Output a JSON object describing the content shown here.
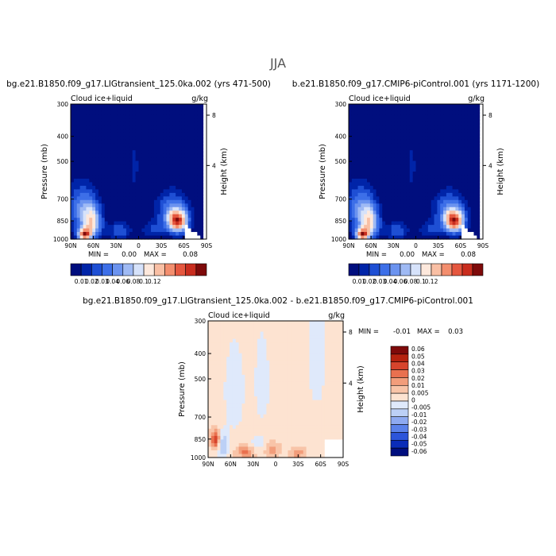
{
  "page_title": "JJA",
  "colors": {
    "ice_scale": [
      "#000e7e",
      "#0024a8",
      "#1e4fd4",
      "#3d6fe8",
      "#6b93ef",
      "#9fbaf4",
      "#d6e2fa",
      "#fde8dc",
      "#f9bfa4",
      "#f38e6e",
      "#e5573f",
      "#c92d1e",
      "#7e0a0a"
    ],
    "diff_scale": [
      "#000e7e",
      "#0a2cb8",
      "#2c55da",
      "#5b82ea",
      "#8eaaf1",
      "#bcd0f6",
      "#dfe9fb",
      "#fde3d1",
      "#f8c4a8",
      "#f29d7b",
      "#e9704f",
      "#d7442c",
      "#b5220f",
      "#7e0a0a"
    ]
  },
  "chart_data": [
    {
      "type": "heatmap",
      "title": "bg.e21.B1850.f09_g17.LIGtransient_125.0ka.002 (yrs 471-500)",
      "variable": "Cloud ice+liquid",
      "units": "g/kg",
      "ylabel": "Pressure (mb)",
      "y2label": "Height (km)",
      "x_ticks": [
        "90N",
        "60N",
        "30N",
        "0",
        "30S",
        "60S",
        "90S"
      ],
      "x_range": [
        90,
        -90
      ],
      "y_ticks": [
        300,
        400,
        500,
        700,
        850,
        1000
      ],
      "y_range": [
        300,
        1000
      ],
      "y2_ticks": [
        8,
        4
      ],
      "min_label": "MIN =",
      "min": "0.00",
      "max_label": "MAX =",
      "max": "0.08",
      "colorbar": {
        "orientation": "horizontal",
        "labels": [
          "0.01",
          "0.02",
          "0.03",
          "0.04",
          "0.06",
          "0.08",
          "0.1",
          "0.12"
        ]
      }
    },
    {
      "type": "heatmap",
      "title": "b.e21.B1850.f09_g17.CMIP6-piControl.001 (yrs 1171-1200)",
      "variable": "Cloud ice+liquid",
      "units": "g/kg",
      "ylabel": "Pressure (mb)",
      "y2label": "Height (km)",
      "x_ticks": [
        "90N",
        "60N",
        "30N",
        "0",
        "30S",
        "60S",
        "90S"
      ],
      "x_range": [
        90,
        -90
      ],
      "y_ticks": [
        300,
        400,
        500,
        700,
        850,
        1000
      ],
      "y_range": [
        300,
        1000
      ],
      "y2_ticks": [
        8,
        4
      ],
      "min_label": "MIN =",
      "min": "0.00",
      "max_label": "MAX =",
      "max": "0.08",
      "colorbar": {
        "orientation": "horizontal",
        "labels": [
          "0.01",
          "0.02",
          "0.03",
          "0.04",
          "0.06",
          "0.08",
          "0.1",
          "0.12"
        ]
      }
    },
    {
      "type": "heatmap",
      "title": "bg.e21.B1850.f09_g17.LIGtransient_125.0ka.002 - b.e21.B1850.f09_g17.CMIP6-piControl.001",
      "variable": "Cloud ice+liquid",
      "units": "g/kg",
      "ylabel": "Pressure (mb)",
      "y2label": "Height (km)",
      "x_ticks": [
        "90N",
        "60N",
        "30N",
        "0",
        "30S",
        "60S",
        "90S"
      ],
      "x_range": [
        90,
        -90
      ],
      "y_ticks": [
        300,
        400,
        500,
        700,
        850,
        1000
      ],
      "y_range": [
        300,
        1000
      ],
      "y2_ticks": [
        8,
        4
      ],
      "min_label": "MIN =",
      "min": "-0.01",
      "max_label": "MAX =",
      "max": "0.03",
      "colorbar": {
        "orientation": "vertical",
        "labels": [
          "0.06",
          "0.05",
          "0.04",
          "0.03",
          "0.02",
          "0.01",
          "0.005",
          "0",
          "-0.005",
          "-0.01",
          "-0.02",
          "-0.03",
          "-0.04",
          "-0.05",
          "-0.06"
        ]
      }
    }
  ]
}
